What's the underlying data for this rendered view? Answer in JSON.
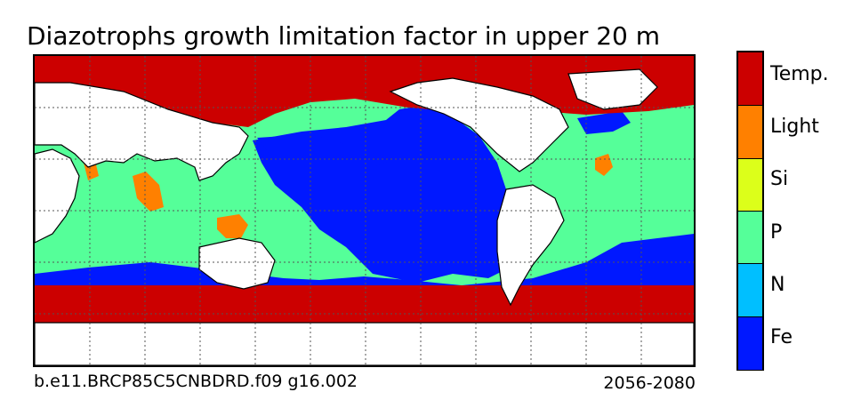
{
  "title": "Diazotrophs growth limitation factor in upper 20 m",
  "footer": {
    "case_name": "b.e11.BRCP85C5CNBDRD.f09 g16.002",
    "years": "2056-2080"
  },
  "legend": {
    "items": [
      {
        "label": "Temp.",
        "color": "#cc0000"
      },
      {
        "label": "Light",
        "color": "#ff8000"
      },
      {
        "label": "Si",
        "color": "#dcff1a"
      },
      {
        "label": "P",
        "color": "#55ff99"
      },
      {
        "label": "N",
        "color": "#00bfff"
      },
      {
        "label": "Fe",
        "color": "#0018ff"
      }
    ]
  },
  "colors": {
    "temp": "#cc0000",
    "light": "#ff8000",
    "phosphorus": "#55ff99",
    "iron": "#0018ff",
    "land": "#ffffff",
    "grid": "#555555"
  }
}
